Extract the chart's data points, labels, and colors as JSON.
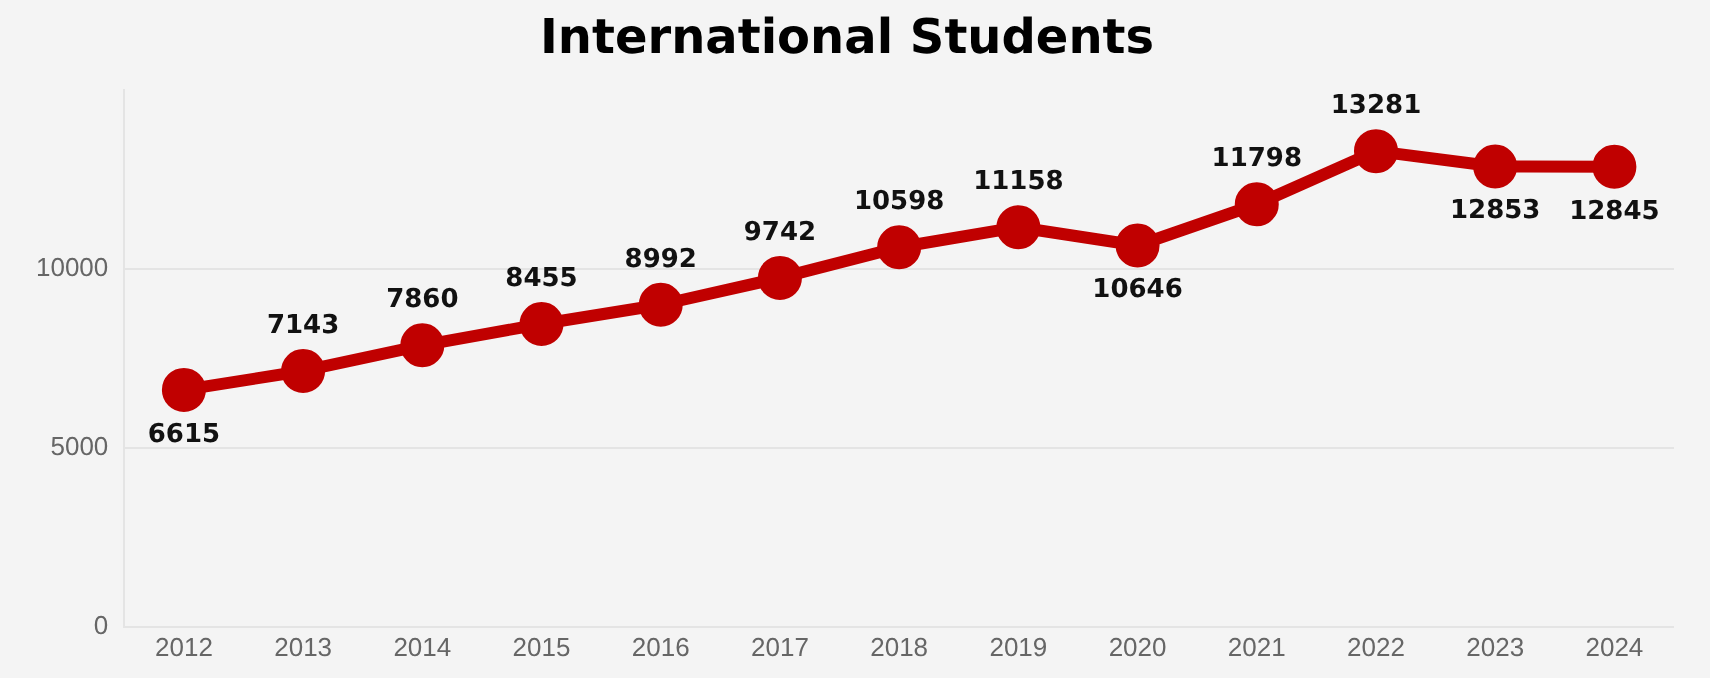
{
  "chart_data": {
    "type": "line",
    "title": "International Students",
    "categories": [
      "2012",
      "2013",
      "2014",
      "2015",
      "2016",
      "2017",
      "2018",
      "2019",
      "2020",
      "2021",
      "2022",
      "2023",
      "2024"
    ],
    "series": [
      {
        "color": "#c00000",
        "values": [
          6615,
          7143,
          7860,
          8455,
          8992,
          9742,
          10598,
          11158,
          10646,
          11798,
          13281,
          12853,
          12845
        ]
      }
    ],
    "ylim": [
      0,
      15000
    ],
    "yticks": [
      0,
      5000,
      10000
    ],
    "grid": "y",
    "legend": false,
    "marker": "circle",
    "line_style": "solid",
    "data_labels": true
  }
}
